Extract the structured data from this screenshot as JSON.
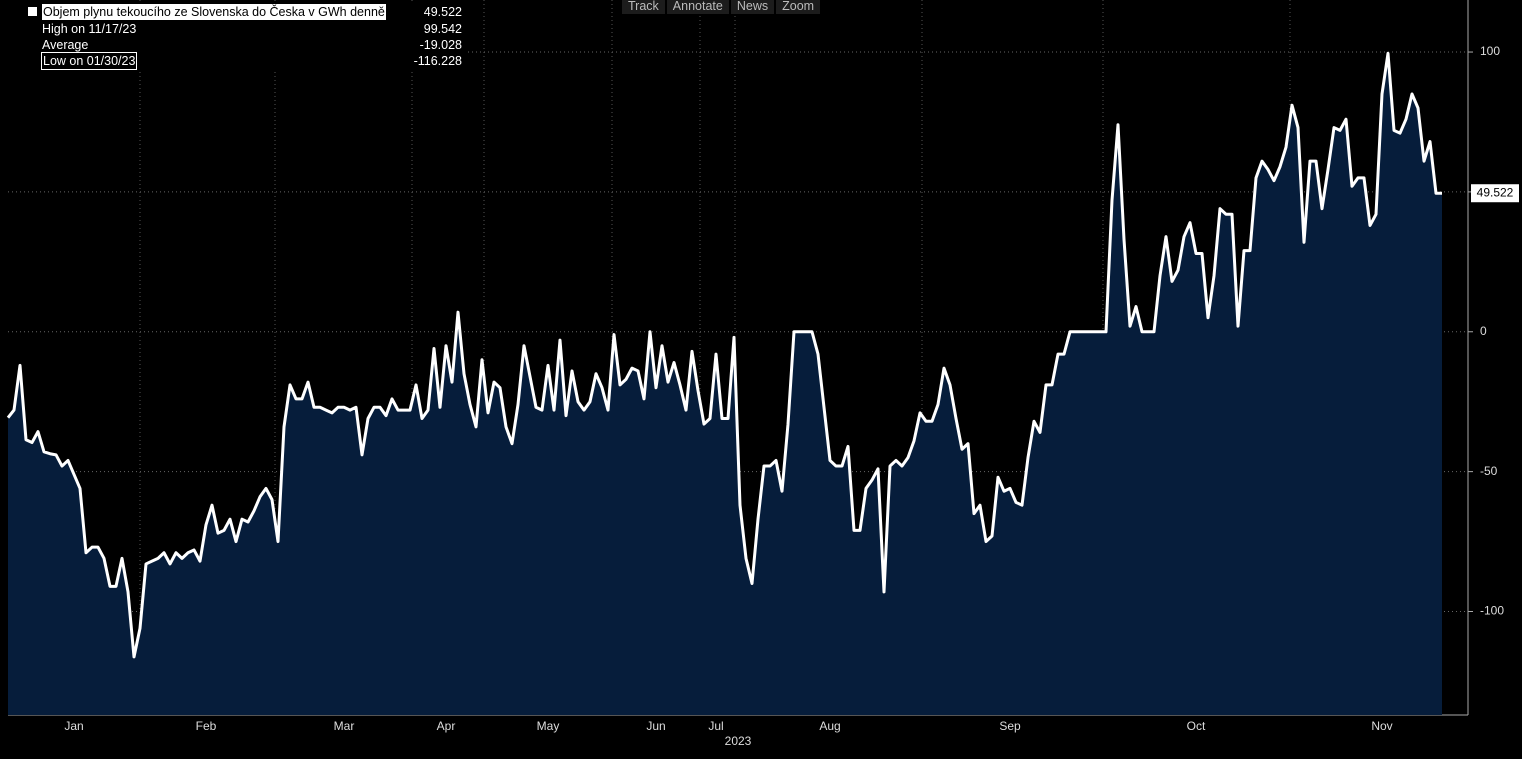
{
  "chart_data": {
    "type": "area",
    "legend": {
      "name": "Objem plynu tekoucího ze Slovenska do Česka v GWh denně",
      "last": 49.522,
      "high_label": "High on 11/17/23",
      "high": 99.542,
      "average_label": "Average",
      "average": -19.028,
      "low_label": "Low on 01/30/23",
      "low": -116.228
    },
    "toolbar": [
      "Track",
      "Annotate",
      "News",
      "Zoom"
    ],
    "x_axis_year": "2023",
    "categories": [
      null,
      null,
      null,
      null,
      null,
      null,
      null,
      null,
      null,
      null,
      null,
      "Jan",
      null,
      null,
      null,
      null,
      null,
      null,
      null,
      null,
      null,
      null,
      null,
      null,
      null,
      null,
      null,
      null,
      null,
      null,
      null,
      null,
      null,
      "Feb",
      null,
      null,
      null,
      null,
      null,
      null,
      null,
      null,
      null,
      null,
      null,
      null,
      null,
      null,
      null,
      null,
      null,
      null,
      null,
      null,
      null,
      null,
      "Mar",
      null,
      null,
      null,
      null,
      null,
      null,
      null,
      null,
      null,
      null,
      null,
      null,
      null,
      null,
      null,
      null,
      "Apr",
      null,
      null,
      null,
      null,
      null,
      null,
      null,
      null,
      null,
      null,
      null,
      null,
      null,
      null,
      null,
      null,
      "May",
      null,
      null,
      null,
      null,
      null,
      null,
      null,
      null,
      null,
      null,
      null,
      null,
      null,
      null,
      null,
      null,
      null,
      "Jun",
      null,
      null,
      null,
      null,
      null,
      null,
      null,
      null,
      null,
      "Jul",
      null,
      null,
      null,
      null,
      null,
      null,
      null,
      null,
      null,
      null,
      null,
      null,
      null,
      null,
      null,
      null,
      null,
      null,
      "Aug",
      null,
      null,
      null,
      null,
      null,
      null,
      null,
      null,
      null,
      null,
      null,
      null,
      null,
      null,
      null,
      null,
      null,
      null,
      null,
      null,
      null,
      null,
      null,
      null,
      null,
      null,
      null,
      null,
      null,
      "Sep",
      null,
      null,
      null,
      null,
      null,
      null,
      null,
      null,
      null,
      null,
      null,
      null,
      null,
      null,
      null,
      null,
      null,
      null,
      null,
      null,
      null,
      null,
      null,
      null,
      null,
      null,
      null,
      null,
      null,
      null,
      "Oct",
      null,
      null,
      null,
      null,
      null,
      null,
      null,
      null,
      null,
      null,
      null,
      null,
      null,
      null,
      null,
      null,
      null,
      null,
      null,
      null,
      null,
      null,
      null,
      null,
      null,
      null,
      null,
      null,
      null,
      null,
      "Nov",
      null,
      null,
      null,
      null,
      null,
      null,
      null,
      null,
      null,
      null
    ],
    "series": [
      {
        "name": "Objem plynu tekoucího ze Slovenska do Česka v GWh denně",
        "color": "#ffffff",
        "fill": "#061d3b",
        "values": [
          -30.7,
          -28,
          -12,
          -38.6,
          -39.6,
          -35.7,
          -42.9,
          -43.6,
          -44,
          -48,
          -46,
          -51,
          -56,
          -79,
          -77,
          -77,
          -81,
          -91,
          -91,
          -81,
          -93,
          -116.228,
          -106,
          -83,
          -82,
          -81,
          -79,
          -83,
          -79,
          -81,
          -79,
          -78,
          -82,
          -69,
          -62,
          -72,
          -71,
          -67,
          -75,
          -67,
          -68,
          -64,
          -59,
          -56,
          -60,
          -75,
          -34,
          -19,
          -24,
          -24,
          -18,
          -27,
          -27,
          -28,
          -29,
          -27,
          -27,
          -28,
          -27,
          -44,
          -31,
          -27,
          -27,
          -30,
          -24,
          -28,
          -28,
          -28,
          -19,
          -31,
          -28,
          -6,
          -27,
          -5,
          -18,
          7,
          -15,
          -26,
          -34,
          -10,
          -29,
          -18,
          -20,
          -34,
          -40,
          -26,
          -5,
          -16,
          -27,
          -28,
          -12,
          -28,
          -3,
          -30,
          -14,
          -25,
          -28,
          -25,
          -15,
          -20,
          -28,
          -1,
          -19,
          -17,
          -13,
          -14,
          -24,
          0,
          -20,
          -5,
          -18,
          -11,
          -19,
          -28,
          -7,
          -21,
          -33,
          -31,
          -8,
          -31,
          -31,
          -2,
          -62,
          -81,
          -90,
          -67,
          -48,
          -48,
          -46,
          -57,
          -33,
          0,
          0,
          0,
          0,
          -8,
          -27,
          -46,
          -48,
          -48,
          -41,
          -71,
          -71,
          -56,
          -53,
          -49,
          -93,
          -48,
          -46,
          -48,
          -45,
          -39,
          -29,
          -32,
          -32,
          -26,
          -13,
          -19,
          -31,
          -42,
          -40,
          -65,
          -62,
          -75,
          -73,
          -52,
          -57,
          -56,
          -61,
          -62,
          -45,
          -32,
          -36,
          -19,
          -19,
          -8,
          -8,
          0,
          0,
          0,
          0,
          0,
          0,
          0,
          47,
          74,
          33,
          2,
          9,
          0,
          0,
          0,
          20,
          34,
          18,
          22,
          34,
          39,
          28,
          28,
          5,
          20,
          44,
          42,
          42,
          2,
          29,
          29,
          55,
          61,
          58,
          54,
          59,
          66,
          81,
          73,
          32,
          61,
          61,
          44,
          58,
          73,
          72,
          76,
          52,
          55,
          55,
          38,
          42,
          85,
          99.542,
          72,
          71,
          76,
          85,
          80,
          61,
          68,
          49.522,
          49.522
        ]
      }
    ],
    "ylim": [
      -137,
      118.6
    ],
    "yticks": [
      100,
      50,
      0,
      -50,
      -100
    ],
    "grid": true,
    "y_axis_side": "right"
  }
}
